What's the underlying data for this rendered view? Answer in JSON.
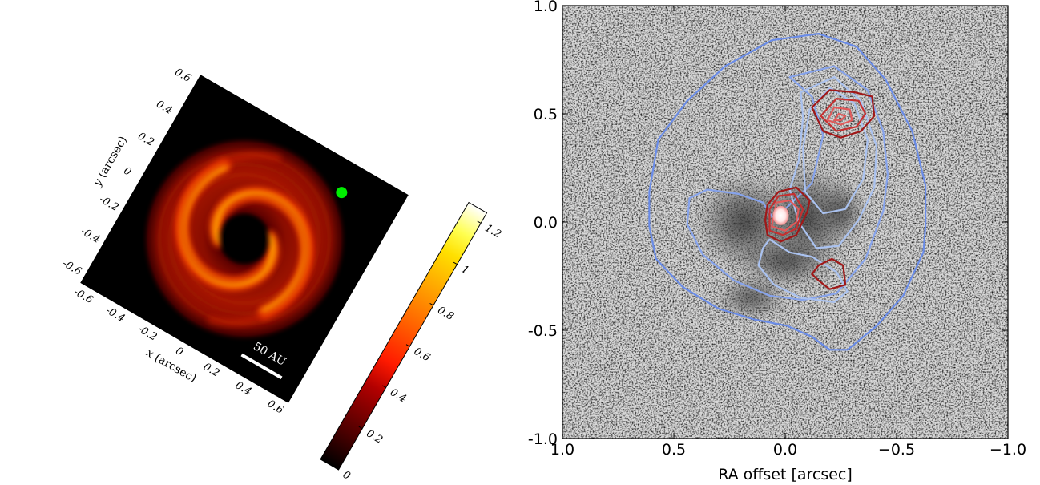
{
  "chart_data": [
    {
      "type": "heatmap",
      "colormap": "hot",
      "xlabel": "x (arcsec)",
      "ylabel": "y (arcsec)",
      "xlabel_var": "x",
      "xlabel_unit": "(arcsec)",
      "ylabel_var": "y",
      "ylabel_unit": "(arcsec)",
      "x_ticks": [
        "-0.6",
        "-0.4",
        "-0.2",
        "0",
        "0.2",
        "0.4",
        "0.6"
      ],
      "y_ticks": [
        "-0.6",
        "-0.4",
        "-0.2",
        "0",
        "0.2",
        "0.4",
        "0.6"
      ],
      "x_tick_values": [
        -0.6,
        -0.4,
        -0.2,
        0,
        0.2,
        0.4,
        0.6
      ],
      "y_tick_values": [
        -0.6,
        -0.4,
        -0.2,
        0,
        0.2,
        0.4,
        0.6
      ],
      "xlim": [
        -0.65,
        0.65
      ],
      "ylim": [
        -0.65,
        0.65
      ],
      "rotation_deg": 30,
      "colorbar": {
        "ticks": [
          "0",
          "0.2",
          "0.4",
          "0.6",
          "0.8",
          "1",
          "1.2"
        ],
        "tick_values": [
          0,
          0.2,
          0.4,
          0.6,
          0.8,
          1.0,
          1.2
        ],
        "range": [
          0,
          1.25
        ]
      },
      "scale_bar_label": "50 AU",
      "marker": {
        "shape": "circle",
        "color": "#00ee00",
        "x": 0.33,
        "y": 0.48
      },
      "structures": {
        "inner_cavity_radius": 0.13,
        "outer_disk_radius": 0.56,
        "spiral_arms": 2
      }
    },
    {
      "type": "contour",
      "background": "grayscale",
      "xlabel": "RA offset [arcsec]",
      "ylabel": "",
      "x_ticks": [
        "1.0",
        "0.5",
        "0.0",
        "−0.5",
        "−1.0"
      ],
      "y_ticks": [
        "-1.0",
        "-0.5",
        "0.0",
        "0.5",
        "1.0"
      ],
      "x_tick_values": [
        1.0,
        0.5,
        0.0,
        -0.5,
        -1.0
      ],
      "y_tick_values": [
        -1.0,
        -0.5,
        0.0,
        0.5,
        1.0
      ],
      "xlim": [
        1.0,
        -1.0
      ],
      "ylim": [
        -1.0,
        1.0
      ],
      "colors": {
        "blue_outer": "#6a8ce8",
        "blue_mid": "#86a3ec",
        "blue_light": "#aac2f0",
        "red_dark": "#a01818",
        "red_mid": "#c53030",
        "red_light": "#e25a5a"
      },
      "blue_contours": [
        {
          "level": 1,
          "points": [
            [
              0.57,
              0.38
            ],
            [
              0.44,
              0.56
            ],
            [
              0.27,
              0.72
            ],
            [
              0.06,
              0.84
            ],
            [
              -0.15,
              0.87
            ],
            [
              -0.32,
              0.81
            ],
            [
              -0.45,
              0.66
            ],
            [
              -0.57,
              0.42
            ],
            [
              -0.63,
              0.17
            ],
            [
              -0.63,
              -0.02
            ],
            [
              -0.62,
              -0.14
            ],
            [
              -0.53,
              -0.34
            ],
            [
              -0.41,
              -0.48
            ],
            [
              -0.28,
              -0.59
            ],
            [
              -0.2,
              -0.59
            ],
            [
              -0.12,
              -0.53
            ],
            [
              -0.01,
              -0.48
            ],
            [
              0.14,
              -0.45
            ],
            [
              0.3,
              -0.4
            ],
            [
              0.46,
              -0.3
            ],
            [
              0.58,
              -0.17
            ],
            [
              0.61,
              -0.02
            ],
            [
              0.61,
              0.14
            ],
            [
              0.57,
              0.38
            ]
          ]
        },
        {
          "level": 2,
          "points": [
            [
              0.05,
              0.01
            ],
            [
              -0.12,
              0.18
            ],
            [
              -0.17,
              0.4
            ],
            [
              -0.12,
              0.58
            ],
            [
              -0.02,
              0.67
            ],
            [
              -0.22,
              0.72
            ],
            [
              -0.37,
              0.61
            ],
            [
              -0.44,
              0.42
            ],
            [
              -0.46,
              0.22
            ],
            [
              -0.44,
              0.05
            ],
            [
              -0.36,
              -0.17
            ],
            [
              -0.23,
              -0.33
            ],
            [
              -0.08,
              -0.36
            ],
            [
              0.07,
              -0.34
            ],
            [
              0.23,
              -0.27
            ],
            [
              0.37,
              -0.15
            ],
            [
              0.44,
              -0.01
            ],
            [
              0.43,
              0.11
            ],
            [
              0.35,
              0.15
            ],
            [
              0.21,
              0.13
            ],
            [
              0.1,
              0.09
            ],
            [
              0.05,
              0.01
            ]
          ]
        },
        {
          "level": 3,
          "points": [
            [
              -0.06,
              0.28
            ],
            [
              -0.08,
              0.48
            ],
            [
              -0.07,
              0.6
            ],
            [
              -0.22,
              0.67
            ],
            [
              -0.34,
              0.56
            ],
            [
              -0.41,
              0.35
            ],
            [
              -0.4,
              0.16
            ],
            [
              -0.33,
              0.01
            ],
            [
              -0.24,
              -0.11
            ],
            [
              -0.14,
              -0.12
            ],
            [
              -0.06,
              0.0
            ],
            [
              -0.02,
              0.15
            ],
            [
              -0.06,
              0.28
            ]
          ]
        },
        {
          "level": 3,
          "points": [
            [
              0.07,
              -0.08
            ],
            [
              -0.02,
              -0.14
            ],
            [
              -0.12,
              -0.16
            ],
            [
              -0.23,
              -0.23
            ],
            [
              -0.28,
              -0.32
            ],
            [
              -0.22,
              -0.37
            ],
            [
              -0.07,
              -0.35
            ],
            [
              0.05,
              -0.29
            ],
            [
              0.12,
              -0.2
            ],
            [
              0.1,
              -0.12
            ],
            [
              0.07,
              -0.08
            ]
          ]
        },
        {
          "level": 4,
          "points": [
            [
              -0.08,
              0.34
            ],
            [
              -0.11,
              0.52
            ],
            [
              -0.2,
              0.62
            ],
            [
              -0.31,
              0.55
            ],
            [
              -0.37,
              0.38
            ],
            [
              -0.35,
              0.2
            ],
            [
              -0.27,
              0.06
            ],
            [
              -0.17,
              0.04
            ],
            [
              -0.09,
              0.14
            ],
            [
              -0.08,
              0.34
            ]
          ]
        }
      ],
      "red_contours": [
        {
          "level": 1,
          "points": [
            [
              -0.12,
              0.53
            ],
            [
              -0.17,
              0.42
            ],
            [
              -0.25,
              0.39
            ],
            [
              -0.34,
              0.42
            ],
            [
              -0.4,
              0.49
            ],
            [
              -0.39,
              0.58
            ],
            [
              -0.31,
              0.6
            ],
            [
              -0.2,
              0.61
            ],
            [
              -0.12,
              0.53
            ]
          ]
        },
        {
          "level": 2,
          "points": [
            [
              -0.16,
              0.49
            ],
            [
              -0.23,
              0.42
            ],
            [
              -0.32,
              0.44
            ],
            [
              -0.36,
              0.5
            ],
            [
              -0.33,
              0.56
            ],
            [
              -0.23,
              0.57
            ],
            [
              -0.16,
              0.49
            ]
          ]
        },
        {
          "level": 3,
          "points": [
            [
              -0.19,
              0.47
            ],
            [
              -0.25,
              0.45
            ],
            [
              -0.3,
              0.47
            ],
            [
              -0.29,
              0.52
            ],
            [
              -0.22,
              0.53
            ],
            [
              -0.19,
              0.47
            ]
          ]
        },
        {
          "level": 4,
          "points": [
            [
              -0.22,
              0.47
            ],
            [
              -0.25,
              0.47
            ],
            [
              -0.27,
              0.49
            ],
            [
              -0.24,
              0.5
            ],
            [
              -0.22,
              0.47
            ]
          ]
        },
        {
          "level": 1,
          "points": [
            [
              0.08,
              -0.06
            ],
            [
              0.02,
              -0.09
            ],
            [
              -0.05,
              -0.06
            ],
            [
              -0.1,
              0.05
            ],
            [
              -0.11,
              0.1
            ],
            [
              -0.05,
              0.16
            ],
            [
              0.03,
              0.14
            ],
            [
              0.08,
              0.08
            ],
            [
              0.09,
              0.01
            ],
            [
              0.08,
              -0.06
            ]
          ]
        },
        {
          "level": 2,
          "points": [
            [
              0.07,
              -0.04
            ],
            [
              0.01,
              -0.06
            ],
            [
              -0.05,
              -0.03
            ],
            [
              -0.08,
              0.06
            ],
            [
              -0.04,
              0.13
            ],
            [
              0.03,
              0.12
            ],
            [
              0.07,
              0.06
            ],
            [
              0.07,
              -0.04
            ]
          ]
        },
        {
          "level": 3,
          "points": [
            [
              0.06,
              -0.02
            ],
            [
              0.0,
              -0.04
            ],
            [
              -0.05,
              0.0
            ],
            [
              -0.06,
              0.06
            ],
            [
              -0.02,
              0.1
            ],
            [
              0.04,
              0.09
            ],
            [
              0.06,
              -0.02
            ]
          ]
        },
        {
          "level": 1,
          "points": [
            [
              -0.12,
              -0.24
            ],
            [
              -0.15,
              -0.27
            ],
            [
              -0.2,
              -0.31
            ],
            [
              -0.27,
              -0.29
            ],
            [
              -0.26,
              -0.2
            ],
            [
              -0.21,
              -0.17
            ],
            [
              -0.15,
              -0.2
            ],
            [
              -0.12,
              -0.24
            ]
          ]
        }
      ],
      "bright_peak": {
        "x": 0.02,
        "y": 0.03
      }
    }
  ]
}
